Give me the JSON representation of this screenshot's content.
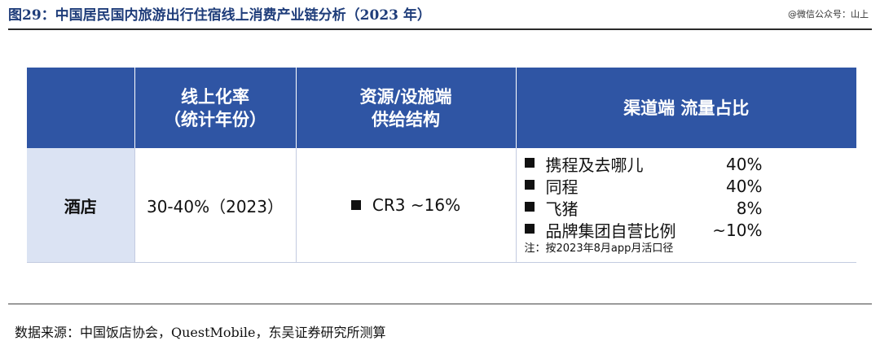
{
  "figure": {
    "title": "图29：中国居民国内旅游出行住宿线上消费产业链分析（2023 年）",
    "watermark": "@微信公众号：山上",
    "source": "数据来源：中国饭店协会，QuestMobile，东吴证券研究所测算"
  },
  "table": {
    "headers": {
      "online_rate_line1": "线上化率",
      "online_rate_line2": "（统计年份）",
      "supply_line1": "资源/设施端",
      "supply_line2": "供给结构",
      "channel": "渠道端 流量占比"
    },
    "row": {
      "label": "酒店",
      "online_rate": "30-40%（2023）",
      "supply": "CR3 ~16%",
      "channels": [
        {
          "name": "携程及去哪儿",
          "value": "40%"
        },
        {
          "name": "同程",
          "value": "40%"
        },
        {
          "name": "飞猪",
          "value": "8%"
        },
        {
          "name": "品牌集团自营比例",
          "value": "~10%"
        }
      ],
      "channel_note": "注：按2023年8月app月活口径"
    }
  }
}
